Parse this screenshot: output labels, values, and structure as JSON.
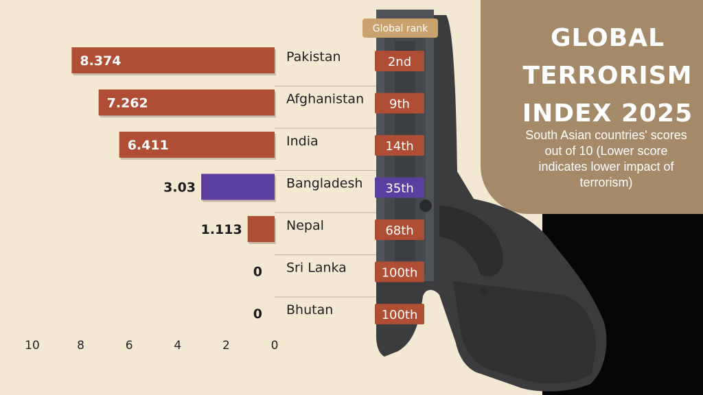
{
  "title_lines": [
    "GLOBAL",
    "TERRORISM",
    "INDEX 2025"
  ],
  "subtitle": "South Asian countries' scores out of 10 (Lower score indicates lower impact of terrorism)",
  "rank_header": "Global rank",
  "colors": {
    "background": "#f3e8d2",
    "bar_default": "#b04e35",
    "bar_highlight": "#5b3fa0",
    "rank_badge": "#b04e35",
    "rank_badge_highlight": "#5b3fa0",
    "rank_header": "#c9a26e",
    "title_panel": "#a58a69",
    "corner_panel": "#060606"
  },
  "chart_data": {
    "type": "bar",
    "orientation": "horizontal",
    "x_direction": "reversed",
    "xlim": [
      0,
      10
    ],
    "xticks": [
      10,
      8,
      6,
      4,
      2,
      0
    ],
    "grid": false,
    "categories": [
      "Pakistan",
      "Afghanistan",
      "India",
      "Bangladesh",
      "Nepal",
      "Sri Lanka",
      "Bhutan"
    ],
    "values": [
      8.374,
      7.262,
      6.411,
      3.03,
      1.113,
      0,
      0
    ],
    "value_labels": [
      "8.374",
      "7.262",
      "6.411",
      "3.03",
      "1.113",
      "0",
      "0"
    ],
    "global_rank": [
      "2nd",
      "9th",
      "14th",
      "35th",
      "68th",
      "100th",
      "100th"
    ],
    "highlight": "Bangladesh",
    "title": "GLOBAL TERRORISM INDEX 2025"
  }
}
